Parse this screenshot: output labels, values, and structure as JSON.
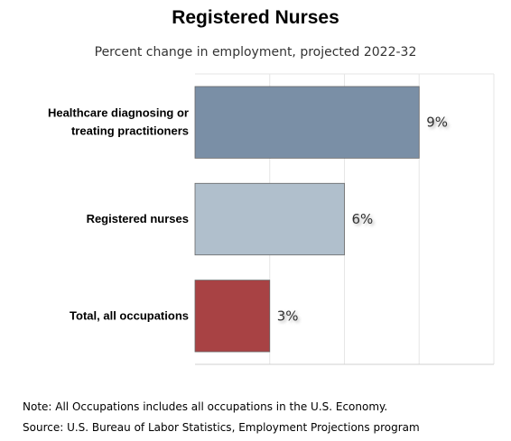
{
  "title": "Registered Nurses",
  "subtitle": "Percent change in employment, projected 2022-32",
  "notes": {
    "note": "Note: All Occupations includes all occupations in the U.S. Economy.",
    "source": "Source: U.S. Bureau of Labor Statistics, Employment Projections program"
  },
  "chart_data": {
    "type": "bar",
    "orientation": "horizontal",
    "title": "Registered Nurses",
    "subtitle": "Percent change in employment, projected 2022-32",
    "categories": [
      [
        "Healthcare diagnosing or",
        "treating practitioners"
      ],
      [
        "Registered nurses"
      ],
      [
        "Total, all occupations"
      ]
    ],
    "values": [
      9,
      6,
      3
    ],
    "value_labels": [
      "9%",
      "6%",
      "3%"
    ],
    "colors": [
      "#7a8fa6",
      "#b0bfcc",
      "#a84244"
    ],
    "xlim": [
      0,
      12
    ],
    "grid": true,
    "legend": "none"
  }
}
